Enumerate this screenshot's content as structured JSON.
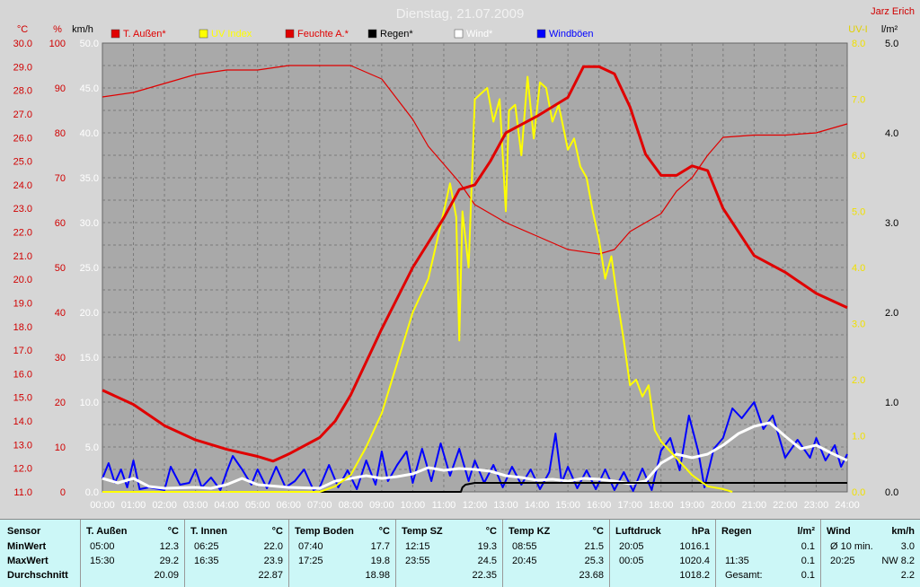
{
  "title": "Dienstag, 21.07.2009",
  "author": "Jarz Erich",
  "colors": {
    "temp": "#e00000",
    "uv": "#ffff00",
    "humidity": "#e00000",
    "rain": "#000000",
    "wind": "#ffffff",
    "gust": "#0000ff",
    "plot_bg": "#a9a9a9"
  },
  "axes": {
    "temp_unit": "°C",
    "hum_unit": "%",
    "wind_unit": "km/h",
    "uv_unit": "UV-I",
    "rain_unit": "l/m²",
    "temp_ticks": [
      "11.0",
      "12.0",
      "13.0",
      "14.0",
      "15.0",
      "16.0",
      "17.0",
      "18.0",
      "19.0",
      "20.0",
      "21.0",
      "22.0",
      "23.0",
      "24.0",
      "25.0",
      "26.0",
      "27.0",
      "28.0",
      "29.0",
      "30.0"
    ],
    "hum_ticks": [
      "0",
      "10",
      "20",
      "30",
      "40",
      "50",
      "60",
      "70",
      "80",
      "90",
      "100"
    ],
    "wind_ticks": [
      "0.0",
      "5.0",
      "10.0",
      "15.0",
      "20.0",
      "25.0",
      "30.0",
      "35.0",
      "40.0",
      "45.0",
      "50.0"
    ],
    "uv_ticks": [
      "0.0",
      "1.0",
      "2.0",
      "3.0",
      "4.0",
      "5.0",
      "6.0",
      "7.0",
      "8.0"
    ],
    "rain_ticks": [
      "0.0",
      "1.0",
      "2.0",
      "3.0",
      "4.0",
      "5.0"
    ],
    "time_ticks": [
      "00:00",
      "01:00",
      "02:00",
      "03:00",
      "04:00",
      "05:00",
      "06:00",
      "07:00",
      "08:00",
      "09:00",
      "10:00",
      "11:00",
      "12:00",
      "13:00",
      "14:00",
      "15:00",
      "16:00",
      "17:00",
      "18:00",
      "19:00",
      "20:00",
      "21:00",
      "22:00",
      "23:00",
      "24:00"
    ]
  },
  "legend": [
    {
      "label": "T. Außen*",
      "color": "#e00000"
    },
    {
      "label": "UV Index",
      "color": "#ffff00"
    },
    {
      "label": "Feuchte A.*",
      "color": "#e00000"
    },
    {
      "label": "Regen*",
      "color": "#000000"
    },
    {
      "label": "Wind*",
      "color": "#ffffff"
    },
    {
      "label": "Windböen",
      "color": "#0000ff"
    }
  ],
  "chart_data": {
    "type": "line",
    "x_unit": "hours",
    "xlim": [
      0,
      24
    ],
    "series": [
      {
        "name": "T. Außen*",
        "axis": "temp",
        "ylim": [
          11,
          30
        ],
        "points": [
          [
            0,
            15.3
          ],
          [
            1,
            14.7
          ],
          [
            2,
            13.8
          ],
          [
            3,
            13.2
          ],
          [
            4,
            12.8
          ],
          [
            5,
            12.5
          ],
          [
            5.5,
            12.3
          ],
          [
            6,
            12.6
          ],
          [
            7,
            13.3
          ],
          [
            7.5,
            14.0
          ],
          [
            8,
            15.1
          ],
          [
            9,
            17.9
          ],
          [
            10,
            20.5
          ],
          [
            11,
            22.6
          ],
          [
            11.5,
            23.8
          ],
          [
            12,
            24.0
          ],
          [
            12.5,
            25.0
          ],
          [
            13,
            26.2
          ],
          [
            14,
            26.9
          ],
          [
            15,
            27.7
          ],
          [
            15.5,
            29.0
          ],
          [
            16,
            29.0
          ],
          [
            16.5,
            28.7
          ],
          [
            17,
            27.3
          ],
          [
            17.5,
            25.3
          ],
          [
            18,
            24.4
          ],
          [
            18.5,
            24.4
          ],
          [
            19,
            24.8
          ],
          [
            19.5,
            24.6
          ],
          [
            20,
            23.0
          ],
          [
            21,
            21.0
          ],
          [
            22,
            20.3
          ],
          [
            23,
            19.4
          ],
          [
            24,
            18.8
          ]
        ]
      },
      {
        "name": "Feuchte A.*",
        "axis": "hum",
        "ylim": [
          0,
          100
        ],
        "points": [
          [
            0,
            88
          ],
          [
            1,
            89
          ],
          [
            2,
            91
          ],
          [
            3,
            93
          ],
          [
            4,
            94
          ],
          [
            5,
            94
          ],
          [
            6,
            95
          ],
          [
            7,
            95
          ],
          [
            8,
            95
          ],
          [
            9,
            92
          ],
          [
            10,
            83
          ],
          [
            10.5,
            77
          ],
          [
            11,
            73
          ],
          [
            11.5,
            69
          ],
          [
            12,
            64
          ],
          [
            13,
            60
          ],
          [
            14,
            57
          ],
          [
            15,
            54
          ],
          [
            16,
            53
          ],
          [
            16.5,
            54
          ],
          [
            17,
            58
          ],
          [
            18,
            62
          ],
          [
            18.5,
            67
          ],
          [
            19,
            70
          ],
          [
            19.5,
            75
          ],
          [
            20,
            79
          ],
          [
            21,
            79.5
          ],
          [
            22,
            79.5
          ],
          [
            23,
            80
          ],
          [
            24,
            82
          ]
        ]
      },
      {
        "name": "UV Index",
        "axis": "uv",
        "ylim": [
          0,
          8
        ],
        "points": [
          [
            0,
            0
          ],
          [
            7.0,
            0
          ],
          [
            7.5,
            0.1
          ],
          [
            8,
            0.3
          ],
          [
            8.5,
            0.8
          ],
          [
            9,
            1.4
          ],
          [
            9.5,
            2.3
          ],
          [
            10,
            3.2
          ],
          [
            10.5,
            3.8
          ],
          [
            11,
            5.0
          ],
          [
            11.2,
            5.5
          ],
          [
            11.4,
            4.9
          ],
          [
            11.5,
            2.7
          ],
          [
            11.6,
            5.0
          ],
          [
            11.8,
            4.0
          ],
          [
            12,
            7.0
          ],
          [
            12.2,
            7.1
          ],
          [
            12.4,
            7.2
          ],
          [
            12.6,
            6.6
          ],
          [
            12.8,
            7.0
          ],
          [
            13,
            5.0
          ],
          [
            13.1,
            6.8
          ],
          [
            13.3,
            6.9
          ],
          [
            13.5,
            6.0
          ],
          [
            13.7,
            7.4
          ],
          [
            13.9,
            6.3
          ],
          [
            14.1,
            7.3
          ],
          [
            14.3,
            7.2
          ],
          [
            14.5,
            6.6
          ],
          [
            14.7,
            6.9
          ],
          [
            15,
            6.1
          ],
          [
            15.2,
            6.3
          ],
          [
            15.4,
            5.8
          ],
          [
            15.6,
            5.6
          ],
          [
            15.8,
            5.0
          ],
          [
            16,
            4.5
          ],
          [
            16.2,
            3.8
          ],
          [
            16.4,
            4.2
          ],
          [
            16.6,
            3.4
          ],
          [
            16.8,
            2.7
          ],
          [
            17,
            1.9
          ],
          [
            17.2,
            2.0
          ],
          [
            17.4,
            1.7
          ],
          [
            17.6,
            1.9
          ],
          [
            17.8,
            1.1
          ],
          [
            18,
            0.9
          ],
          [
            18.5,
            0.6
          ],
          [
            19,
            0.3
          ],
          [
            19.5,
            0.1
          ],
          [
            20,
            0.05
          ],
          [
            20.3,
            0
          ]
        ]
      },
      {
        "name": "Regen*",
        "axis": "rain",
        "ylim": [
          0,
          5
        ],
        "points": [
          [
            0,
            0
          ],
          [
            11.55,
            0
          ],
          [
            11.6,
            0.05
          ],
          [
            11.7,
            0.08
          ],
          [
            12,
            0.1
          ],
          [
            24,
            0.1
          ]
        ]
      },
      {
        "name": "Wind*",
        "axis": "wind",
        "ylim": [
          0,
          50
        ],
        "points": [
          [
            0,
            1.5
          ],
          [
            0.5,
            1.0
          ],
          [
            1,
            1.5
          ],
          [
            1.5,
            0.6
          ],
          [
            2,
            0.4
          ],
          [
            3,
            0.5
          ],
          [
            3.5,
            0.4
          ],
          [
            4,
            0.8
          ],
          [
            4.5,
            1.5
          ],
          [
            5,
            0.8
          ],
          [
            6,
            0.5
          ],
          [
            7,
            0.4
          ],
          [
            7.5,
            1.2
          ],
          [
            8,
            1.5
          ],
          [
            8.5,
            1.8
          ],
          [
            9,
            1.5
          ],
          [
            9.5,
            1.7
          ],
          [
            10,
            2.0
          ],
          [
            10.5,
            2.7
          ],
          [
            11,
            2.4
          ],
          [
            11.5,
            2.6
          ],
          [
            12,
            2.5
          ],
          [
            12.5,
            2.3
          ],
          [
            13,
            1.8
          ],
          [
            13.5,
            1.6
          ],
          [
            14,
            1.3
          ],
          [
            14.5,
            1.4
          ],
          [
            15,
            1.2
          ],
          [
            15.5,
            1.5
          ],
          [
            16,
            1.4
          ],
          [
            16.5,
            1.2
          ],
          [
            17,
            0.9
          ],
          [
            17.5,
            1.2
          ],
          [
            18,
            3.2
          ],
          [
            18.5,
            4.2
          ],
          [
            19,
            3.8
          ],
          [
            19.5,
            4.2
          ],
          [
            20,
            5.2
          ],
          [
            20.5,
            6.5
          ],
          [
            21,
            7.3
          ],
          [
            21.5,
            7.7
          ],
          [
            22,
            6.2
          ],
          [
            22.5,
            4.8
          ],
          [
            23,
            5.2
          ],
          [
            23.5,
            4.3
          ],
          [
            24,
            3.5
          ]
        ]
      },
      {
        "name": "Windböen",
        "axis": "wind",
        "ylim": [
          0,
          50
        ],
        "points": [
          [
            0,
            1.5
          ],
          [
            0.2,
            3.2
          ],
          [
            0.4,
            1.0
          ],
          [
            0.6,
            2.5
          ],
          [
            0.8,
            0.5
          ],
          [
            1,
            3.5
          ],
          [
            1.2,
            0.3
          ],
          [
            1.5,
            0.5
          ],
          [
            2,
            0.2
          ],
          [
            2.2,
            2.8
          ],
          [
            2.5,
            0.8
          ],
          [
            2.8,
            1.0
          ],
          [
            3,
            2.5
          ],
          [
            3.2,
            0.5
          ],
          [
            3.5,
            1.6
          ],
          [
            3.8,
            0.2
          ],
          [
            4,
            2.2
          ],
          [
            4.2,
            4.0
          ],
          [
            4.5,
            2.5
          ],
          [
            4.8,
            0.8
          ],
          [
            5,
            2.5
          ],
          [
            5.3,
            0.4
          ],
          [
            5.6,
            2.8
          ],
          [
            5.9,
            0.5
          ],
          [
            6.2,
            1.2
          ],
          [
            6.5,
            2.5
          ],
          [
            6.8,
            0.2
          ],
          [
            7,
            0.5
          ],
          [
            7.3,
            3.0
          ],
          [
            7.6,
            0.5
          ],
          [
            7.9,
            2.4
          ],
          [
            8.2,
            0.3
          ],
          [
            8.5,
            3.5
          ],
          [
            8.8,
            0.8
          ],
          [
            9,
            4.5
          ],
          [
            9.2,
            1.2
          ],
          [
            9.5,
            3.0
          ],
          [
            9.8,
            4.5
          ],
          [
            10,
            1.0
          ],
          [
            10.3,
            4.8
          ],
          [
            10.6,
            1.2
          ],
          [
            10.9,
            5.4
          ],
          [
            11.2,
            1.8
          ],
          [
            11.5,
            4.8
          ],
          [
            11.8,
            1.2
          ],
          [
            12,
            3.5
          ],
          [
            12.3,
            1.0
          ],
          [
            12.6,
            3.0
          ],
          [
            12.9,
            0.5
          ],
          [
            13.2,
            2.8
          ],
          [
            13.5,
            0.8
          ],
          [
            13.8,
            2.5
          ],
          [
            14.1,
            0.3
          ],
          [
            14.4,
            2.2
          ],
          [
            14.6,
            6.5
          ],
          [
            14.8,
            1.0
          ],
          [
            15,
            2.8
          ],
          [
            15.3,
            0.4
          ],
          [
            15.6,
            2.4
          ],
          [
            15.9,
            0.3
          ],
          [
            16.2,
            2.5
          ],
          [
            16.5,
            0.2
          ],
          [
            16.8,
            2.2
          ],
          [
            17.1,
            0.1
          ],
          [
            17.4,
            2.6
          ],
          [
            17.7,
            0.2
          ],
          [
            18,
            4.6
          ],
          [
            18.3,
            6.0
          ],
          [
            18.6,
            2.4
          ],
          [
            18.9,
            8.5
          ],
          [
            19.2,
            4.5
          ],
          [
            19.4,
            0.5
          ],
          [
            19.7,
            4.8
          ],
          [
            20,
            6.0
          ],
          [
            20.3,
            9.3
          ],
          [
            20.6,
            8.2
          ],
          [
            21,
            10.0
          ],
          [
            21.3,
            7.0
          ],
          [
            21.6,
            8.5
          ],
          [
            22,
            3.8
          ],
          [
            22.4,
            5.8
          ],
          [
            22.8,
            3.8
          ],
          [
            23,
            6.0
          ],
          [
            23.3,
            3.5
          ],
          [
            23.6,
            5.2
          ],
          [
            23.8,
            2.8
          ],
          [
            24,
            4.2
          ]
        ]
      }
    ]
  },
  "stats": {
    "row_labels": {
      "header": "Sensor",
      "min": "MinWert",
      "max": "MaxWert",
      "avg": "Durchschnitt"
    },
    "columns": [
      {
        "name": "T. Außen",
        "unit": "°C",
        "min_time": "05:00",
        "min": "12.3",
        "max_time": "15:30",
        "max": "29.2",
        "avg": "20.09"
      },
      {
        "name": "T. Innen",
        "unit": "°C",
        "min_time": "06:25",
        "min": "22.0",
        "max_time": "16:35",
        "max": "23.9",
        "avg": "22.87"
      },
      {
        "name": "Temp Boden",
        "unit": "°C",
        "min_time": "07:40",
        "min": "17.7",
        "max_time": "17:25",
        "max": "19.8",
        "avg": "18.98"
      },
      {
        "name": "Temp SZ",
        "unit": "°C",
        "min_time": "12:15",
        "min": "19.3",
        "max_time": "23:55",
        "max": "24.5",
        "avg": "22.35"
      },
      {
        "name": "Temp KZ",
        "unit": "°C",
        "min_time": "08:55",
        "min": "21.5",
        "max_time": "20:45",
        "max": "25.3",
        "avg": "23.68"
      },
      {
        "name": "Luftdruck",
        "unit": "hPa",
        "min_time": "20:05",
        "min": "1016.1",
        "max_time": "00:05",
        "max": "1020.4",
        "avg": "1018.2"
      },
      {
        "name": "Regen",
        "unit": "l/m²",
        "min_time": "",
        "min": "0.1",
        "max_time": "11:35",
        "max": "0.1",
        "avg_label": "Gesamt:",
        "avg": "0.1"
      },
      {
        "name": "Wind",
        "unit": "km/h",
        "min_time": "Ø 10 min.",
        "min": "3.0",
        "max_time": "20:25",
        "max": "NW 8.2",
        "avg": "2.2"
      }
    ]
  }
}
